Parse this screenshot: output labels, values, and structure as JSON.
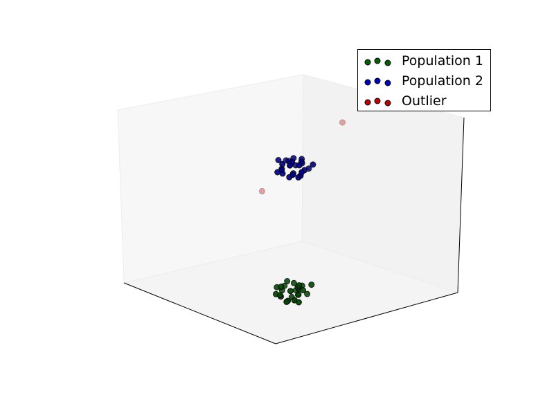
{
  "chart_data": {
    "type": "scatter",
    "projection": "3d",
    "title": "",
    "xlabel": "",
    "ylabel": "",
    "zlabel": "",
    "ticks": "hidden",
    "grid": false,
    "legend_position": "top-right",
    "xlim": [
      0,
      10
    ],
    "ylim": [
      0,
      10
    ],
    "zlim": [
      0,
      10
    ],
    "series": [
      {
        "name": "Population 1",
        "color": "#008000",
        "points": [
          [
            2.1,
            3.0,
            1.2
          ],
          [
            2.6,
            3.4,
            0.9
          ],
          [
            3.0,
            2.8,
            1.4
          ],
          [
            2.8,
            3.6,
            1.1
          ],
          [
            2.4,
            2.6,
            0.8
          ],
          [
            3.3,
            3.1,
            1.0
          ],
          [
            2.2,
            3.8,
            1.5
          ],
          [
            2.9,
            3.3,
            0.7
          ],
          [
            2.5,
            2.9,
            1.3
          ],
          [
            3.1,
            3.7,
            0.9
          ],
          [
            2.7,
            2.5,
            1.1
          ],
          [
            2.3,
            3.2,
            1.6
          ],
          [
            3.4,
            2.9,
            1.2
          ],
          [
            2.6,
            3.9,
            0.8
          ],
          [
            3.0,
            3.5,
            1.4
          ],
          [
            2.0,
            2.7,
            1.0
          ],
          [
            2.8,
            3.0,
            0.6
          ],
          [
            3.2,
            3.3,
            1.5
          ],
          [
            2.4,
            3.5,
            1.2
          ],
          [
            2.9,
            2.7,
            0.9
          ],
          [
            3.5,
            3.4,
            1.1
          ],
          [
            2.2,
            3.1,
            0.7
          ],
          [
            2.7,
            3.7,
            1.3
          ],
          [
            3.1,
            2.6,
            1.0
          ],
          [
            2.5,
            3.3,
            1.4
          ]
        ]
      },
      {
        "name": "Population 2",
        "color": "#0000ff",
        "points": [
          [
            2.0,
            3.1,
            8.2
          ],
          [
            2.5,
            3.5,
            8.5
          ],
          [
            2.9,
            2.8,
            7.9
          ],
          [
            2.7,
            3.7,
            8.3
          ],
          [
            2.3,
            2.7,
            8.6
          ],
          [
            3.2,
            3.0,
            8.0
          ],
          [
            2.1,
            3.8,
            8.4
          ],
          [
            2.8,
            3.3,
            7.8
          ],
          [
            2.4,
            2.9,
            8.7
          ],
          [
            3.0,
            3.6,
            8.1
          ],
          [
            2.6,
            2.5,
            8.3
          ],
          [
            2.2,
            3.2,
            7.9
          ],
          [
            3.3,
            2.9,
            8.5
          ],
          [
            2.5,
            3.9,
            8.0
          ],
          [
            2.9,
            3.4,
            8.6
          ],
          [
            2.0,
            2.6,
            8.2
          ],
          [
            2.7,
            3.0,
            7.7
          ],
          [
            3.1,
            3.3,
            8.4
          ],
          [
            2.3,
            3.5,
            8.1
          ],
          [
            2.8,
            2.7,
            8.5
          ],
          [
            3.4,
            3.4,
            8.3
          ],
          [
            2.1,
            3.0,
            7.9
          ],
          [
            2.6,
            3.6,
            8.6
          ],
          [
            3.0,
            2.6,
            8.0
          ],
          [
            2.4,
            3.3,
            8.4
          ]
        ]
      },
      {
        "name": "Outlier",
        "color": "#ff0000",
        "points": [
          [
            5.2,
            8.0,
            8.5
          ],
          [
            7.5,
            5.5,
            4.5
          ]
        ]
      }
    ]
  }
}
